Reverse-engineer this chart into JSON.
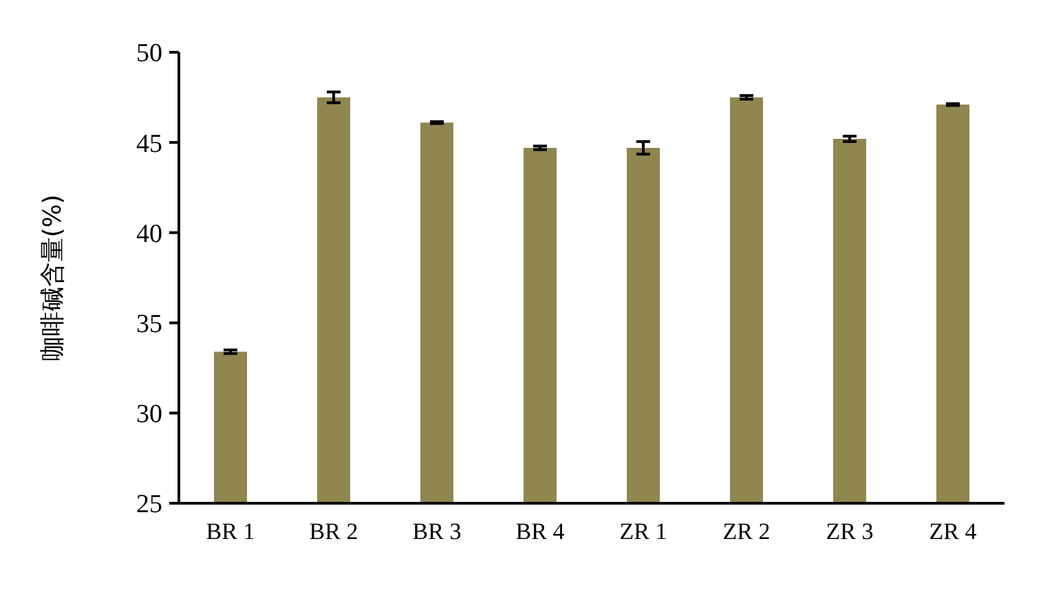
{
  "chart_data": {
    "type": "bar",
    "ylabel": "咖啡碱含量(%)",
    "categories": [
      "BR 1",
      "BR 2",
      "BR 3",
      "BR 4",
      "ZR 1",
      "ZR 2",
      "ZR 3",
      "ZR 4"
    ],
    "values": [
      33.4,
      47.5,
      46.1,
      44.7,
      44.7,
      47.5,
      45.2,
      47.1
    ],
    "errors": [
      0.1,
      0.3,
      0.05,
      0.1,
      0.35,
      0.1,
      0.15,
      0.05
    ],
    "color": "#8f8650",
    "ylim": [
      25,
      50
    ],
    "yticks": [
      25,
      30,
      35,
      40,
      45,
      50
    ],
    "grid": false
  }
}
